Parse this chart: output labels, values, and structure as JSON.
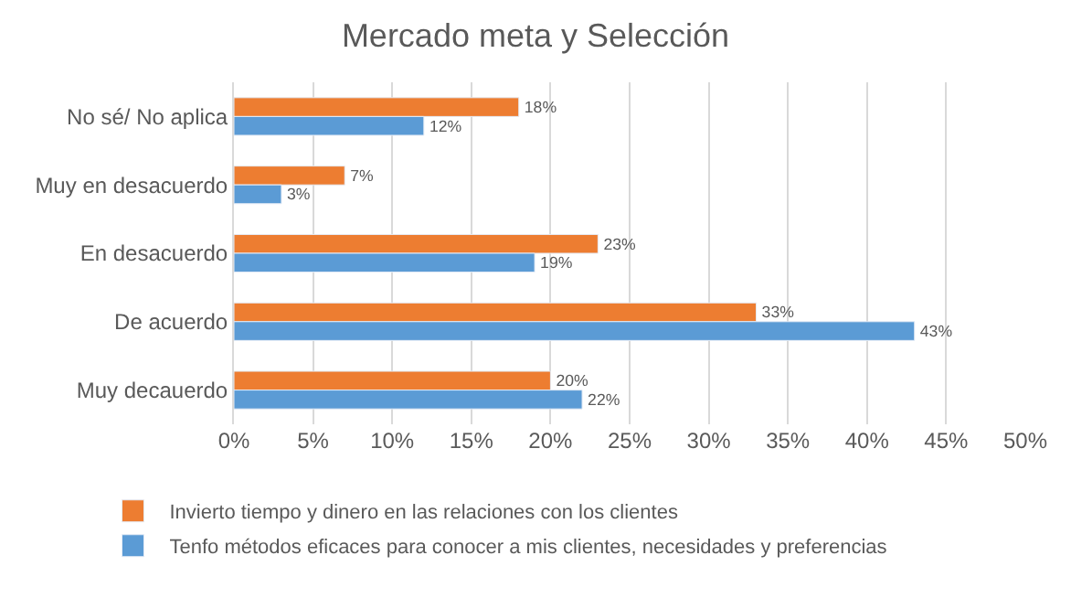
{
  "chart_data": {
    "type": "bar",
    "orientation": "horizontal",
    "title": "Mercado meta y Selección",
    "categories": [
      "No sé/ No aplica",
      "Muy en desacuerdo",
      "En desacuerdo",
      "De acuerdo",
      "Muy decauerdo"
    ],
    "series": [
      {
        "name": "Invierto tiempo y dinero en las relaciones con los clientes",
        "color": "#ed7d31",
        "values": [
          18,
          7,
          23,
          33,
          20
        ],
        "value_labels": [
          "18%",
          "7%",
          "23%",
          "33%",
          "20%"
        ]
      },
      {
        "name": "Tenfo métodos eficaces para conocer a mis clientes, necesidades y preferencias",
        "color": "#5b9bd5",
        "values": [
          12,
          3,
          19,
          43,
          22
        ],
        "value_labels": [
          "12%",
          "3%",
          "19%",
          "43%",
          "22%"
        ]
      }
    ],
    "xlim": [
      0,
      50
    ],
    "xticks": [
      {
        "value": 0,
        "label": "0%"
      },
      {
        "value": 5,
        "label": "5%"
      },
      {
        "value": 10,
        "label": "10%"
      },
      {
        "value": 15,
        "label": "15%"
      },
      {
        "value": 20,
        "label": "20%"
      },
      {
        "value": 25,
        "label": "25%"
      },
      {
        "value": 30,
        "label": "30%"
      },
      {
        "value": 35,
        "label": "35%"
      },
      {
        "value": 40,
        "label": "40%"
      },
      {
        "value": 45,
        "label": "45%"
      },
      {
        "value": 50,
        "label": "50%"
      }
    ],
    "grid": "x",
    "legend": "bottom"
  }
}
